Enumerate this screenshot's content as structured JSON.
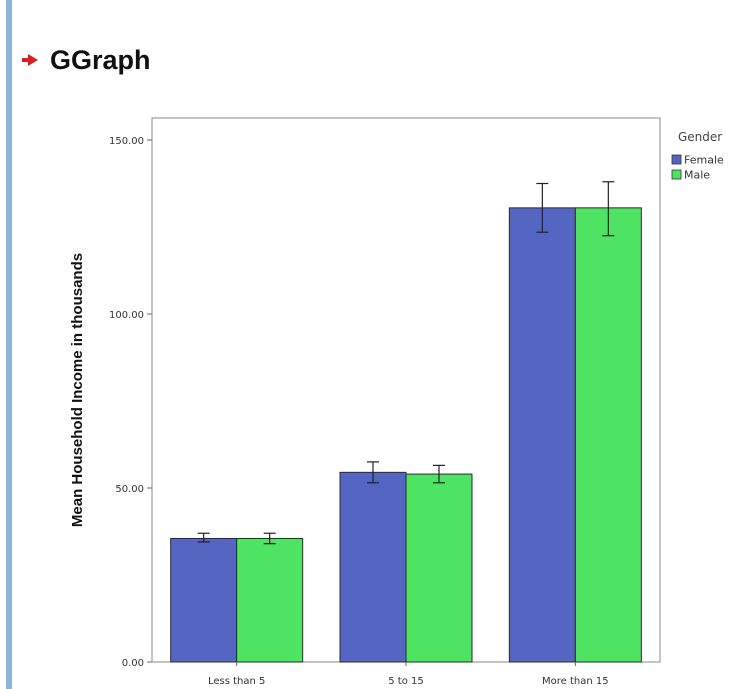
{
  "header": {
    "title": "GGraph",
    "arrow_icon": "red-arrow-icon"
  },
  "chart_data": {
    "type": "bar",
    "categories": [
      "Less than 5",
      "5 to 15",
      "More than 15"
    ],
    "series": [
      {
        "name": "Female",
        "color": "#5565c2",
        "values": [
          35.5,
          54.5,
          130.5
        ],
        "error_low": [
          34.5,
          51.5,
          123.5
        ],
        "error_high": [
          37.0,
          57.5,
          137.5
        ]
      },
      {
        "name": "Male",
        "color": "#4fe363",
        "values": [
          35.5,
          54.0,
          130.5
        ],
        "error_low": [
          34.0,
          51.5,
          122.5
        ],
        "error_high": [
          37.0,
          56.5,
          138.0
        ]
      }
    ],
    "ylabel": "Mean Household Income in thousands",
    "xlabel": "",
    "ylim": [
      0,
      150
    ],
    "yticks": [
      {
        "value": 0,
        "label": "0.00"
      },
      {
        "value": 50,
        "label": "50.00"
      },
      {
        "value": 100,
        "label": "100.00"
      },
      {
        "value": 150,
        "label": "150.00"
      }
    ],
    "legend": {
      "title": "Gender",
      "position": "right"
    },
    "grid": false
  }
}
